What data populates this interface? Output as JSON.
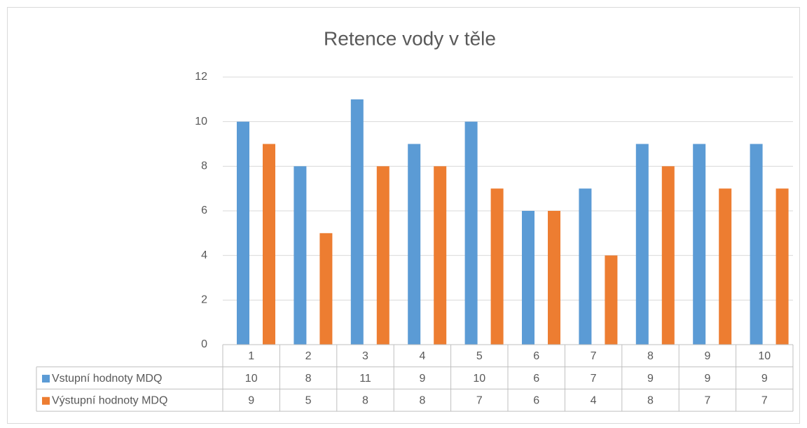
{
  "chart_data": {
    "type": "bar",
    "title": "Retence vody v těle",
    "categories": [
      "1",
      "2",
      "3",
      "4",
      "5",
      "6",
      "7",
      "8",
      "9",
      "10"
    ],
    "series": [
      {
        "name": "Vstupní hodnoty MDQ",
        "color": "#5b9bd5",
        "values": [
          10,
          8,
          11,
          9,
          10,
          6,
          7,
          9,
          9,
          9
        ]
      },
      {
        "name": "Výstupní hodnoty MDQ",
        "color": "#ed7d31",
        "values": [
          9,
          5,
          8,
          8,
          7,
          6,
          4,
          8,
          7,
          7
        ]
      }
    ],
    "ylim": [
      0,
      12
    ],
    "yticks": [
      0,
      2,
      4,
      6,
      8,
      10,
      12
    ],
    "grid": true
  }
}
